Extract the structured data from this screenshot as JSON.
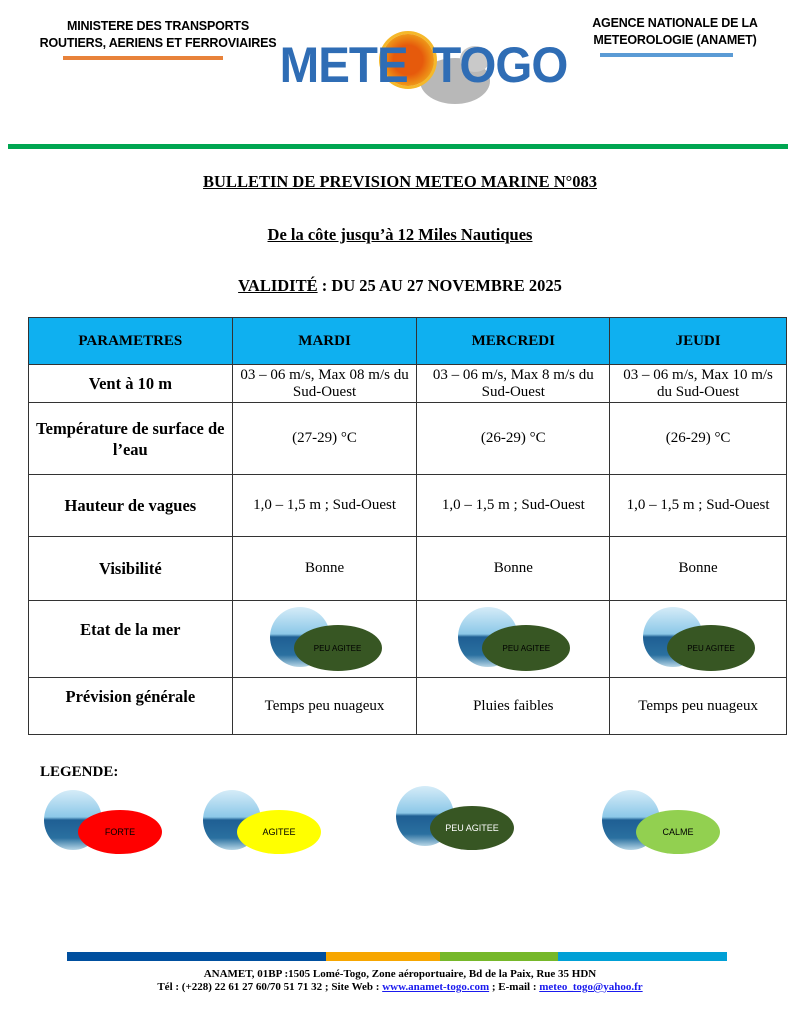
{
  "header": {
    "left": [
      "MINISTERE DES TRANSPORTS",
      "ROUTIERS, AERIENS ET FERROVIAIRES"
    ],
    "right": [
      "AGENCE NATIONALE DE LA",
      "METEOROLOGIE (ANAMET)"
    ],
    "logo": "METEO TOGO",
    "colors": {
      "left_line": "#e8823a",
      "right_line": "#5b9bd5",
      "green_rule": "#00a651"
    }
  },
  "titles": {
    "bulletin": "BULLETIN DE PREVISION METEO MARINE N°083",
    "zone": "De la côte jusqu’à 12 Miles Nautiques",
    "validity_label": "VALIDITÉ",
    "validity_rest": " : DU 25 AU 27 NOVEMBRE 2025"
  },
  "table": {
    "headers": [
      "PARAMETRES",
      "MARDI",
      "MERCREDI",
      "JEUDI"
    ],
    "rows": [
      {
        "param": "Vent à 10 m",
        "values": [
          "03 – 06 m/s, Max 08 m/s du Sud-Ouest",
          "03 – 06 m/s, Max 8 m/s du Sud-Ouest",
          "03 – 06 m/s, Max 10 m/s du Sud-Ouest"
        ]
      },
      {
        "param": "Température de surface de l’eau",
        "values": [
          "(27-29) °C",
          "(26-29) °C",
          "(26-29) °C"
        ]
      },
      {
        "param": "Hauteur de vagues",
        "values": [
          "1,0 – 1,5 m ; Sud-Ouest",
          "1,0 – 1,5 m ; Sud-Ouest",
          "1,0 – 1,5 m ; Sud-Ouest"
        ]
      },
      {
        "param": "Visibilité",
        "values": [
          "Bonne",
          "Bonne",
          "Bonne"
        ]
      },
      {
        "param": "Etat de la mer",
        "values": [
          "PEU AGITEE",
          "PEU AGITEE",
          "PEU AGITEE"
        ]
      },
      {
        "param": "Prévision générale",
        "values": [
          "Temps peu nuageux",
          "Pluies faibles",
          "Temps peu nuageux"
        ]
      }
    ]
  },
  "legend": {
    "title": "LEGENDE:",
    "items": [
      {
        "label": "FORTE",
        "color": "#ff0000"
      },
      {
        "label": "AGITEE",
        "color": "#ffff00"
      },
      {
        "label": "PEU AGITEE",
        "color": "#375623"
      },
      {
        "label": "CALME",
        "color": "#92d050"
      }
    ]
  },
  "footer": {
    "line1": "ANAMET, 01BP :1505 Lomé-Togo, Zone aéroportuaire, Bd de la Paix, Rue 35 HDN",
    "line2_a": "Tél : (+228) 22 61 27 60/70 51 71 32 ; Site Web : ",
    "website": "www.anamet-togo.com",
    "line2_b": " ; E-mail : ",
    "email": "meteo_togo@yahoo.fr",
    "bar_colors": [
      "#004f9f",
      "#f7a600",
      "#76b82a",
      "#00a0d6"
    ]
  }
}
